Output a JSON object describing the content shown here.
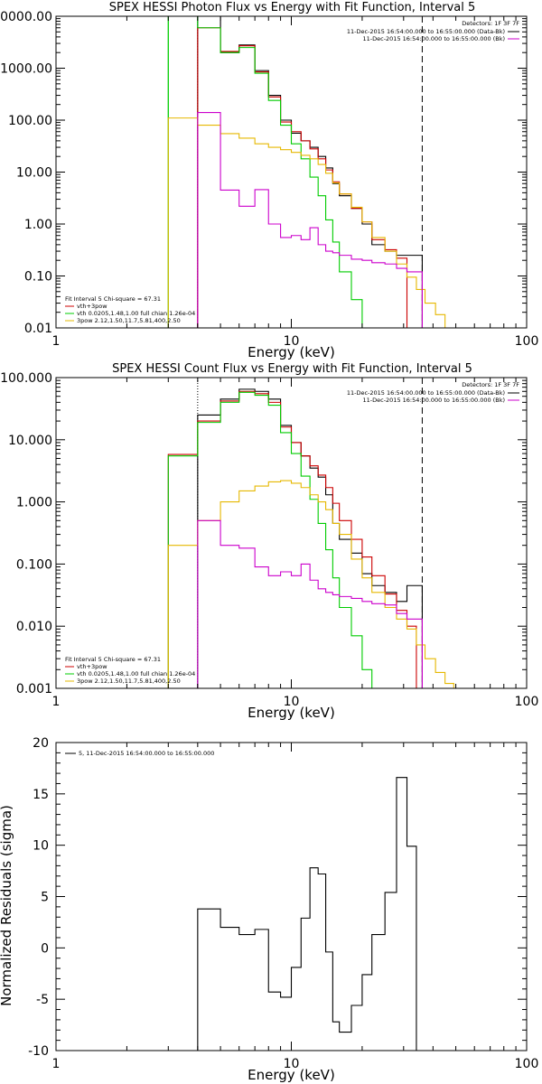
{
  "chart_data": [
    {
      "type": "line",
      "title": "SPEX HESSI Photon Flux vs Energy with Fit Function, Interval 5",
      "xlabel": "Energy (keV)",
      "ylabel": "",
      "xscale": "log",
      "yscale": "log",
      "xlim": [
        1,
        100
      ],
      "ylim": [
        0.01,
        10000
      ],
      "xticks": [
        "1",
        "10",
        "100"
      ],
      "yticks": [
        "10000.00",
        "1000.00",
        "100.00",
        "10.00",
        "1.00",
        "0.10",
        "0.01"
      ],
      "legend_top": {
        "placement": "top-right",
        "header": "Detectors: 1F 3F 7F",
        "entries": [
          {
            "label": "11-Dec-2015 16:54:00.000 to 16:55:00.000 (Data-Bk)",
            "color": "#000000"
          },
          {
            "label": "11-Dec-2015 16:54:00.000 to 16:55:00.000 (Bk)",
            "color": "#cc00cc"
          }
        ]
      },
      "legend_fit": {
        "placement": "bottom-left",
        "header": "Fit Interval 5   Chi-square = 67.31",
        "entries": [
          {
            "label": "vth+3pow",
            "color": "#cc0000"
          },
          {
            "label": "vth 0.0205,1.48,1.00  full chian 1.26e-04",
            "color": "#00cc00"
          },
          {
            "label": "3pow 2.12,1.50,11.7,5.81,400,2.50",
            "color": "#e6b800"
          }
        ]
      },
      "vlines": [
        {
          "x": 3.0,
          "color": "#00cc00",
          "style": "solid",
          "y_range": [
            0.01,
            10000
          ]
        },
        {
          "x": 4.0,
          "color": "#000000",
          "style": "dotted",
          "y_range": [
            0.01,
            10000
          ]
        },
        {
          "x": 36.0,
          "color": "#000000",
          "style": "dashed",
          "y_range": [
            0.01,
            10000
          ]
        }
      ],
      "series": [
        {
          "name": "Data-Bk",
          "color": "#000000",
          "bin_edges": [
            4,
            5,
            6,
            7,
            8,
            9,
            10,
            11,
            12,
            13,
            14,
            15,
            16,
            18,
            20,
            22,
            25,
            28,
            31,
            36
          ],
          "values": [
            10000,
            2000,
            2800,
            900,
            300,
            100,
            56,
            40,
            30,
            20,
            12,
            6,
            3.5,
            2.0,
            1.0,
            0.4,
            0.3,
            0.25,
            0.25
          ]
        },
        {
          "name": "vth+3pow",
          "color": "#cc0000",
          "bin_edges": [
            4,
            5,
            6,
            7,
            8,
            9,
            10,
            11,
            12,
            13,
            14,
            15,
            16,
            18,
            20,
            22,
            25,
            28,
            31
          ],
          "values": [
            6000,
            2100,
            2700,
            850,
            280,
            92,
            60,
            40,
            28,
            18,
            11,
            6.5,
            3.8,
            2.0,
            1.1,
            0.5,
            0.32,
            0.22
          ]
        },
        {
          "name": "vth",
          "color": "#00cc00",
          "bin_edges": [
            3,
            4,
            5,
            6,
            7,
            8,
            9,
            10,
            11,
            12,
            13,
            14,
            15,
            16,
            18,
            20,
            22
          ],
          "values": [
            10000,
            6000,
            2000,
            2500,
            800,
            240,
            80,
            35,
            18,
            8,
            3.5,
            1.2,
            0.45,
            0.12,
            0.035,
            0.01
          ]
        },
        {
          "name": "3pow",
          "color": "#e6b800",
          "bin_edges": [
            3,
            4,
            5,
            6,
            7,
            8,
            9,
            10,
            11,
            12,
            13,
            14,
            15,
            16,
            18,
            20,
            22,
            25,
            28,
            31,
            34,
            37,
            41,
            45
          ],
          "values": [
            110,
            80,
            55,
            45,
            35,
            30,
            27,
            24,
            21,
            18,
            14,
            9.5,
            6.2,
            3.8,
            2.1,
            1.1,
            0.55,
            0.3,
            0.17,
            0.095,
            0.055,
            0.03,
            0.018
          ]
        },
        {
          "name": "Bk",
          "color": "#cc00cc",
          "bin_edges": [
            4,
            5,
            6,
            7,
            8,
            9,
            10,
            11,
            12,
            13,
            14,
            15,
            16,
            18,
            20,
            22,
            25,
            28,
            31,
            36
          ],
          "values": [
            140,
            4.5,
            2.2,
            4.6,
            1.0,
            0.55,
            0.6,
            0.5,
            0.85,
            0.4,
            0.3,
            0.28,
            0.25,
            0.21,
            0.2,
            0.18,
            0.17,
            0.14,
            0.12
          ]
        }
      ]
    },
    {
      "type": "line",
      "title": "SPEX HESSI Count Flux vs Energy with Fit Function, Interval 5",
      "xlabel": "Energy (keV)",
      "ylabel": "",
      "xscale": "log",
      "yscale": "log",
      "xlim": [
        1,
        100
      ],
      "ylim": [
        0.001,
        100
      ],
      "xticks": [
        "1",
        "10",
        "100"
      ],
      "yticks": [
        "100.000",
        "10.000",
        "1.000",
        "0.100",
        "0.010",
        "0.001"
      ],
      "legend_top": {
        "placement": "top-right",
        "header": "Detectors: 1F 3F 7F",
        "entries": [
          {
            "label": "11-Dec-2015 16:54:00.000 to 16:55:00.000 (Data-Bk)",
            "color": "#000000"
          },
          {
            "label": "11-Dec-2015 16:54:00.000 to 16:55:00.000 (Bk)",
            "color": "#cc00cc"
          }
        ]
      },
      "legend_fit": {
        "placement": "bottom-left",
        "header": "Fit Interval 5   Chi-square = 67.31",
        "entries": [
          {
            "label": "vth+3pow",
            "color": "#cc0000"
          },
          {
            "label": "vth 0.0205,1.48,1.00  full chian 1.26e-04",
            "color": "#00cc00"
          },
          {
            "label": "3pow 2.12,1.50,11.7,5.81,400,2.50",
            "color": "#e6b800"
          }
        ]
      },
      "vlines": [
        {
          "x": 4.0,
          "color": "#000000",
          "style": "dotted",
          "y_range": [
            0.001,
            100
          ]
        },
        {
          "x": 36.0,
          "color": "#000000",
          "style": "dashed",
          "y_range": [
            0.001,
            100
          ]
        }
      ],
      "series": [
        {
          "name": "Data-Bk",
          "color": "#000000",
          "bin_edges": [
            4,
            5,
            6,
            7,
            8,
            9,
            10,
            11,
            12,
            13,
            14,
            15,
            16,
            18,
            20,
            22,
            25,
            28,
            31,
            36
          ],
          "values": [
            25,
            45,
            65,
            60,
            45,
            17,
            9,
            5.5,
            3.5,
            2.5,
            1.3,
            0.45,
            0.25,
            0.15,
            0.07,
            0.045,
            0.035,
            0.025,
            0.045
          ]
        },
        {
          "name": "vth+3pow",
          "color": "#cc0000",
          "bin_edges": [
            3,
            4,
            5,
            6,
            7,
            8,
            9,
            10,
            11,
            12,
            13,
            14,
            15,
            16,
            18,
            20,
            22,
            25,
            28,
            31,
            34
          ],
          "values": [
            5.8,
            20,
            42,
            60,
            55,
            40,
            16,
            9,
            5.5,
            3.8,
            2.7,
            1.7,
            0.95,
            0.5,
            0.25,
            0.13,
            0.065,
            0.033,
            0.018,
            0.01
          ]
        },
        {
          "name": "vth",
          "color": "#00cc00",
          "bin_edges": [
            3,
            4,
            5,
            6,
            7,
            8,
            9,
            10,
            11,
            12,
            13,
            14,
            15,
            16,
            18,
            20,
            22
          ],
          "values": [
            5.5,
            19,
            40,
            58,
            52,
            36,
            13,
            6,
            2.6,
            1.1,
            0.45,
            0.17,
            0.06,
            0.02,
            0.007,
            0.002
          ]
        },
        {
          "name": "3pow",
          "color": "#e6b800",
          "bin_edges": [
            3,
            4,
            5,
            6,
            7,
            8,
            9,
            10,
            11,
            12,
            13,
            14,
            15,
            16,
            18,
            20,
            22,
            25,
            28,
            31,
            34,
            37,
            41,
            45,
            49
          ],
          "values": [
            0.2,
            0.5,
            1.0,
            1.5,
            1.8,
            2.1,
            2.2,
            2.0,
            1.7,
            1.3,
            1.0,
            0.75,
            0.45,
            0.3,
            0.12,
            0.06,
            0.035,
            0.02,
            0.013,
            0.009,
            0.005,
            0.003,
            0.0018,
            0.0012
          ]
        },
        {
          "name": "Bk",
          "color": "#cc00cc",
          "bin_edges": [
            4,
            5,
            6,
            7,
            8,
            9,
            10,
            11,
            12,
            13,
            14,
            15,
            16,
            18,
            20,
            22,
            25,
            28,
            31,
            36
          ],
          "values": [
            0.5,
            0.2,
            0.18,
            0.09,
            0.065,
            0.075,
            0.065,
            0.1,
            0.055,
            0.04,
            0.035,
            0.032,
            0.03,
            0.028,
            0.025,
            0.023,
            0.022,
            0.016,
            0.013
          ]
        }
      ]
    },
    {
      "type": "line",
      "title": "",
      "xlabel": "Energy (keV)",
      "ylabel": "Normalized Residuals (sigma)",
      "xscale": "log",
      "yscale": "linear",
      "xlim": [
        1,
        100
      ],
      "ylim": [
        -10,
        20
      ],
      "xticks": [
        "1",
        "10",
        "100"
      ],
      "yticks": [
        "20",
        "15",
        "10",
        "5",
        "0",
        "-5",
        "-10"
      ],
      "legend": {
        "placement": "top-left",
        "entries": [
          {
            "label": "5, 11-Dec-2015 16:54:00.000 to 16:55:00.000",
            "color": "#000000"
          }
        ]
      },
      "series": [
        {
          "name": "5, 11-Dec-2015 16:54:00.000 to 16:55:00.000",
          "color": "#000000",
          "bin_edges": [
            4,
            5,
            6,
            7,
            8,
            9,
            10,
            11,
            12,
            13,
            14,
            15,
            16,
            18,
            20,
            22,
            25,
            28,
            31,
            34,
            36
          ],
          "values": [
            3.8,
            2.0,
            1.3,
            1.8,
            -4.3,
            -4.8,
            -1.9,
            2.9,
            7.8,
            7.2,
            -0.4,
            -7.2,
            -8.2,
            -5.6,
            -2.6,
            1.3,
            5.4,
            16.6,
            9.9,
            -10
          ]
        }
      ]
    }
  ]
}
